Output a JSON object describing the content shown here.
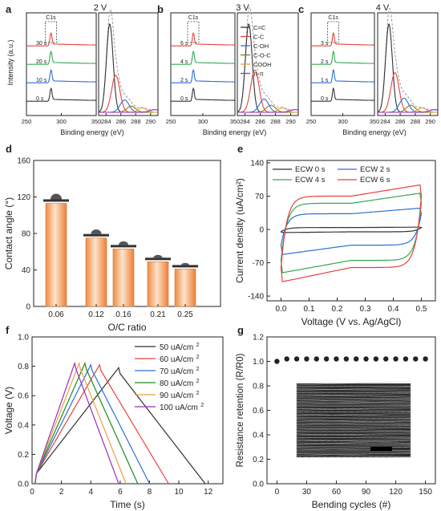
{
  "panel_letters": [
    "a",
    "b",
    "c",
    "d",
    "e",
    "f",
    "g"
  ],
  "colors": {
    "black": "#333333",
    "red": "#e8413a",
    "blue": "#2a6fd6",
    "green": "#33a852",
    "orange": "#e8a33a",
    "purple": "#9a2fb8",
    "olive": "#8a7a1a",
    "darkred": "#d0312d",
    "darkgreen": "#1e8a1e",
    "bar_fill": "#f4a46a"
  },
  "chart_data": [
    {
      "id": "a",
      "type": "line",
      "title": "2 V",
      "ylabel": "Intensity (a.u.)",
      "xlabel": "Binding energy (eV)",
      "left": {
        "xlim": [
          250,
          350
        ],
        "xticks": [
          "250",
          "300",
          "350"
        ],
        "tag": "C1s",
        "traces": [
          {
            "label": "0 s",
            "color": "#333333"
          },
          {
            "label": "10 s",
            "color": "#2a6fd6"
          },
          {
            "label": "20 s",
            "color": "#33a852"
          },
          {
            "label": "30 s",
            "color": "#e8413a"
          }
        ]
      },
      "right": {
        "xlim": [
          283,
          291
        ],
        "xticks": [
          "284",
          "286",
          "288",
          "290"
        ],
        "components": [
          "C=C",
          "C-C",
          "C-OH",
          "C-O-C",
          "COOH",
          "π-π"
        ],
        "peaks": [
          284.5,
          285.3,
          286.5,
          287.4,
          288.9,
          290.6
        ],
        "heights": [
          1.0,
          0.42,
          0.14,
          0.07,
          0.05,
          0.03
        ]
      }
    },
    {
      "id": "b",
      "type": "line",
      "title": "3 V",
      "xlabel": "Binding energy (eV)",
      "left": {
        "xlim": [
          250,
          350
        ],
        "xticks": [
          "250",
          "300",
          "350"
        ],
        "tag": "C1s",
        "traces": [
          {
            "label": "0 s",
            "color": "#333333"
          },
          {
            "label": "2 s",
            "color": "#2a6fd6"
          },
          {
            "label": "4 s",
            "color": "#33a852"
          },
          {
            "label": "6 s",
            "color": "#e8413a"
          }
        ]
      },
      "right": {
        "xlim": [
          283,
          291
        ],
        "xticks": [
          "284",
          "286",
          "288",
          "290"
        ],
        "components": [
          "C=C",
          "C-C",
          "C-OH",
          "C-O-C",
          "COOH",
          "π-π"
        ],
        "peaks": [
          284.5,
          285.3,
          286.5,
          287.4,
          288.9,
          290.6
        ],
        "heights": [
          1.0,
          0.48,
          0.15,
          0.08,
          0.05,
          0.03
        ]
      },
      "legend": [
        "C=C",
        "C-C",
        "C-OH",
        "C-O-C",
        "COOH",
        "π-π"
      ]
    },
    {
      "id": "c",
      "type": "line",
      "title": "4 V",
      "xlabel": "Binding energy (eV)",
      "left": {
        "xlim": [
          250,
          350
        ],
        "xticks": [
          "250",
          "300",
          "350"
        ],
        "tag": "C1s",
        "traces": [
          {
            "label": "0 s",
            "color": "#333333"
          },
          {
            "label": "1 s",
            "color": "#2a6fd6"
          },
          {
            "label": "2 s",
            "color": "#33a852"
          },
          {
            "label": "3 s",
            "color": "#e8413a"
          }
        ]
      },
      "right": {
        "xlim": [
          283,
          291
        ],
        "xticks": [
          "284",
          "286",
          "288",
          "290"
        ],
        "components": [
          "C=C",
          "C-C",
          "C-OH",
          "C-O-C",
          "COOH",
          "π-π"
        ],
        "peaks": [
          284.5,
          285.3,
          286.5,
          287.4,
          288.9,
          290.6
        ],
        "heights": [
          1.0,
          0.45,
          0.16,
          0.08,
          0.05,
          0.03
        ]
      }
    },
    {
      "id": "d",
      "type": "bar",
      "xlabel": "O/C ratio",
      "ylabel": "Contact angle (°)",
      "ylim": [
        0,
        160
      ],
      "yticks": [
        0,
        40,
        80,
        120,
        160
      ],
      "categories": [
        "0.06",
        "0.12",
        "0.16",
        "0.21",
        "0.25"
      ],
      "values": [
        113,
        75,
        63,
        49,
        41
      ]
    },
    {
      "id": "e",
      "type": "line",
      "xlabel": "Voltage (V vs. Ag/AgCl)",
      "ylabel": "Current density (uA/cm²)",
      "xlim": [
        -0.05,
        0.55
      ],
      "ylim": [
        -150,
        145
      ],
      "xticks": [
        0.0,
        0.1,
        0.2,
        0.3,
        0.4,
        0.5
      ],
      "yticks": [
        -140,
        -70,
        0,
        70,
        140
      ],
      "series": [
        {
          "name": "ECW 0 s",
          "color": "#333333",
          "upper": 4,
          "lower": -5,
          "peak_hi": 5,
          "peak_lo": -7
        },
        {
          "name": "ECW 2 s",
          "color": "#2a6fd6",
          "upper": 33,
          "lower": -33,
          "peak_hi": 48,
          "peak_lo": -58
        },
        {
          "name": "ECW 4 s",
          "color": "#33a852",
          "upper": 55,
          "lower": -65,
          "peak_hi": 82,
          "peak_lo": -98
        },
        {
          "name": "ECW 6 s",
          "color": "#e8413a",
          "upper": 70,
          "lower": -80,
          "peak_hi": 100,
          "peak_lo": -118
        }
      ]
    },
    {
      "id": "f",
      "type": "line",
      "xlabel": "Time (s)",
      "ylabel": "Voltage (V)",
      "xlim": [
        0,
        13
      ],
      "ylim": [
        0,
        1.0
      ],
      "xticks": [
        0,
        2,
        4,
        6,
        8,
        10,
        12
      ],
      "yticks": [
        0.0,
        0.2,
        0.4,
        0.6,
        0.8,
        1.0
      ],
      "series": [
        {
          "name": "50 uA/cm",
          "sup": "2",
          "color": "#333333",
          "peak_t": 5.9,
          "peak_v": 0.79,
          "end_t": 11.8
        },
        {
          "name": "60 uA/cm",
          "sup": "2",
          "color": "#e8413a",
          "peak_t": 4.6,
          "peak_v": 0.81,
          "end_t": 9.3
        },
        {
          "name": "70 uA/cm",
          "sup": "2",
          "color": "#2a6fd6",
          "peak_t": 4.0,
          "peak_v": 0.81,
          "end_t": 8.0
        },
        {
          "name": "80 uA/cm",
          "sup": "2",
          "color": "#1e8a1e",
          "peak_t": 3.6,
          "peak_v": 0.82,
          "end_t": 7.2
        },
        {
          "name": "90 uA/cm",
          "sup": "2",
          "color": "#e8a33a",
          "peak_t": 3.2,
          "peak_v": 0.82,
          "end_t": 6.4
        },
        {
          "name": "100 uA/cm",
          "sup": "2",
          "color": "#9a2fb8",
          "peak_t": 2.9,
          "peak_v": 0.82,
          "end_t": 5.9
        }
      ]
    },
    {
      "id": "g",
      "type": "scatter",
      "xlabel": "Bending cycles (#)",
      "ylabel": "Resistance retention (R/R0)",
      "xlim": [
        -10,
        160
      ],
      "ylim": [
        0,
        1.2
      ],
      "xticks": [
        0,
        30,
        60,
        90,
        120,
        150
      ],
      "yticks": [
        0.0,
        0.2,
        0.4,
        0.6,
        0.8,
        1.0,
        1.2
      ],
      "x": [
        0,
        10,
        20,
        30,
        40,
        50,
        60,
        70,
        80,
        90,
        100,
        110,
        120,
        130,
        140,
        150
      ],
      "y": [
        1.0,
        1.02,
        1.02,
        1.02,
        1.02,
        1.02,
        1.02,
        1.02,
        1.02,
        1.02,
        1.02,
        1.02,
        1.02,
        1.02,
        1.02,
        1.02
      ]
    }
  ]
}
